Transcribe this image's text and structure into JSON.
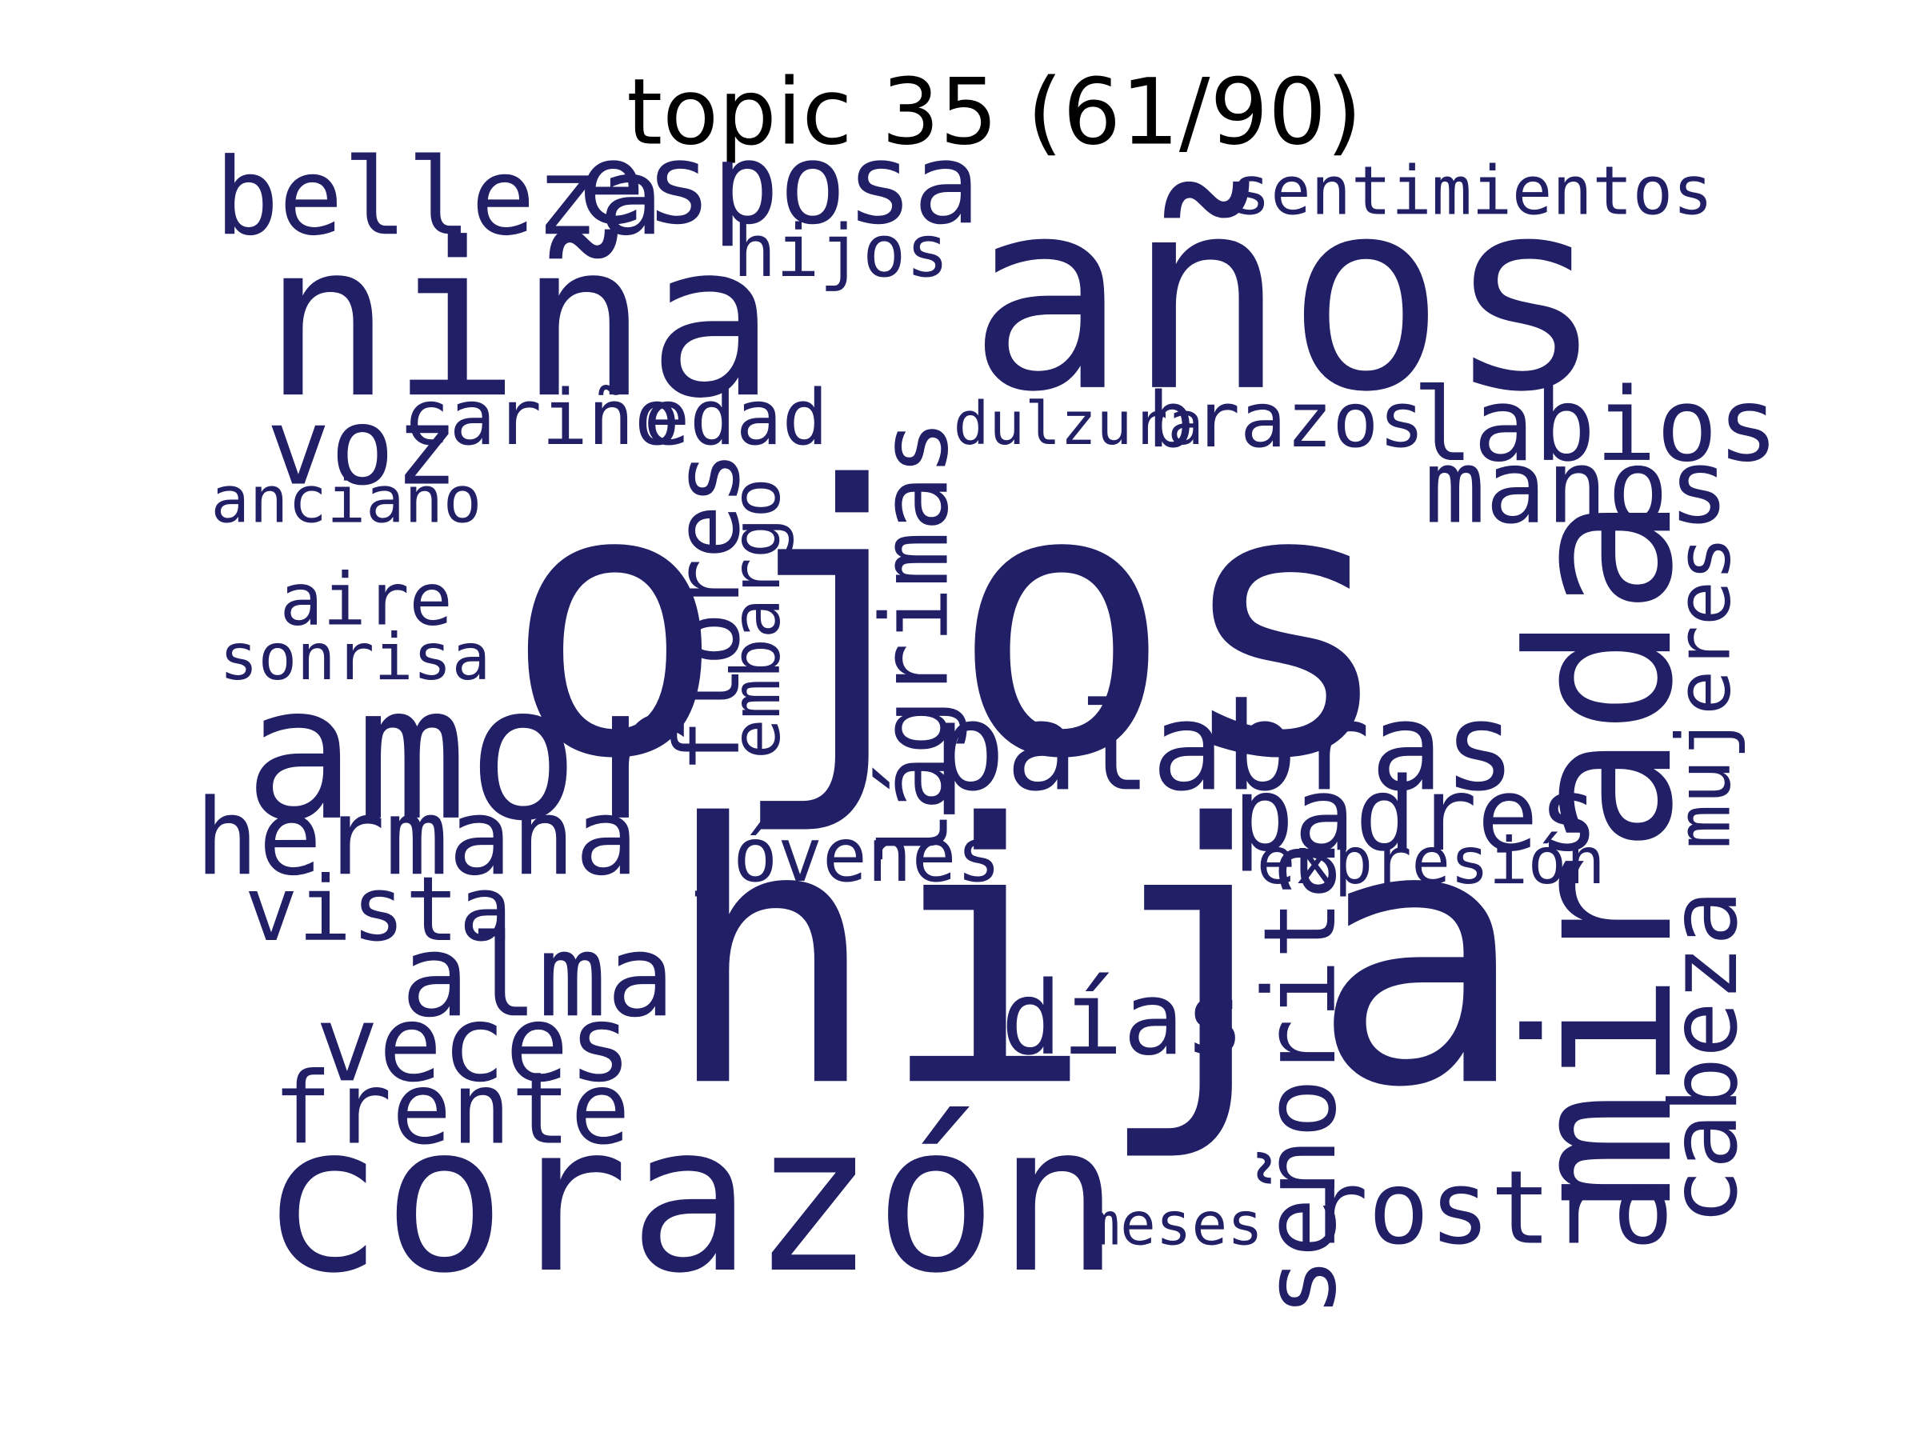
{
  "title": "topic 35 (61/90)",
  "colors": {
    "background": "#ffffff",
    "title": "#000000",
    "words": "#211f66"
  },
  "words": [
    {
      "text": "ojos",
      "weight": 1.0
    },
    {
      "text": "hija",
      "weight": 0.96
    },
    {
      "text": "años",
      "weight": 0.71
    },
    {
      "text": "niña",
      "weight": 0.57
    },
    {
      "text": "corazón",
      "weight": 0.55
    },
    {
      "text": "mirada",
      "weight": 0.53
    },
    {
      "text": "amor",
      "weight": 0.5
    },
    {
      "text": "palabras",
      "weight": 0.33
    },
    {
      "text": "alma",
      "weight": 0.31
    },
    {
      "text": "esposa",
      "weight": 0.3
    },
    {
      "text": "belleza",
      "weight": 0.28
    },
    {
      "text": "voz",
      "weight": 0.28
    },
    {
      "text": "hermana",
      "weight": 0.28
    },
    {
      "text": "veces",
      "weight": 0.28
    },
    {
      "text": "labios",
      "weight": 0.27
    },
    {
      "text": "manos",
      "weight": 0.27
    },
    {
      "text": "padres",
      "weight": 0.27
    },
    {
      "text": "días",
      "weight": 0.27
    },
    {
      "text": "rostro",
      "weight": 0.27
    },
    {
      "text": "frente",
      "weight": 0.26
    },
    {
      "text": "señorita",
      "weight": 0.26
    },
    {
      "text": "lágrimas",
      "weight": 0.25
    },
    {
      "text": "cabeza",
      "weight": 0.25
    },
    {
      "text": "flores",
      "weight": 0.24
    },
    {
      "text": "vista",
      "weight": 0.24
    },
    {
      "text": "cariño",
      "weight": 0.2
    },
    {
      "text": "edad",
      "weight": 0.2
    },
    {
      "text": "brazos",
      "weight": 0.2
    },
    {
      "text": "mujeres",
      "weight": 0.2
    },
    {
      "text": "jóvenes",
      "weight": 0.2
    },
    {
      "text": "hijos",
      "weight": 0.19
    },
    {
      "text": "aire",
      "weight": 0.19
    },
    {
      "text": "sentimientos",
      "weight": 0.18
    },
    {
      "text": "embargo",
      "weight": 0.18
    },
    {
      "text": "expresión",
      "weight": 0.17
    },
    {
      "text": "anciano",
      "weight": 0.17
    },
    {
      "text": "sonrisa",
      "weight": 0.17
    },
    {
      "text": "dulzura",
      "weight": 0.16
    },
    {
      "text": "meses",
      "weight": 0.16
    }
  ]
}
